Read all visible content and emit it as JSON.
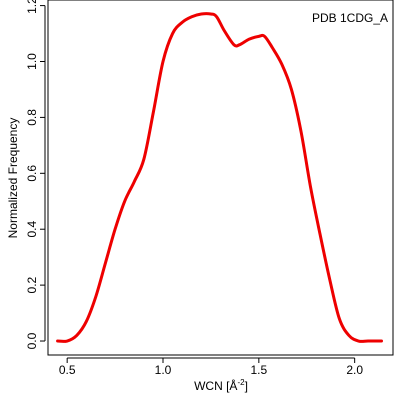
{
  "chart_data": {
    "type": "line",
    "title": "",
    "annotation": "PDB 1CDG_A",
    "xlabel_prefix": "WCN [",
    "xlabel_unit": "Å",
    "xlabel_exponent": "-2",
    "xlabel_suffix": "]",
    "ylabel": "Normalized Frequency",
    "xlim": [
      0.4,
      2.2
    ],
    "ylim": [
      -0.05,
      1.22
    ],
    "xticks": [
      0.5,
      1.0,
      1.5,
      2.0
    ],
    "xtick_labels": [
      "0.5",
      "1.0",
      "1.5",
      "2.0"
    ],
    "yticks": [
      0.0,
      0.2,
      0.4,
      0.6,
      0.8,
      1.0,
      1.2
    ],
    "ytick_labels": [
      "0.0",
      "0.2",
      "0.4",
      "0.6",
      "0.8",
      "1.0",
      "1.2"
    ],
    "grid": false,
    "line_color": "#ee0000",
    "series": [
      {
        "x": [
          0.45,
          0.5,
          0.55,
          0.6,
          0.65,
          0.7,
          0.75,
          0.8,
          0.85,
          0.9,
          0.95,
          1.0,
          1.05,
          1.1,
          1.15,
          1.2,
          1.25,
          1.28,
          1.32,
          1.37,
          1.4,
          1.45,
          1.5,
          1.53,
          1.57,
          1.62,
          1.67,
          1.72,
          1.77,
          1.82,
          1.87,
          1.92,
          1.97,
          2.02,
          2.07,
          2.14
        ],
        "y": [
          0.0,
          0.0,
          0.02,
          0.07,
          0.16,
          0.28,
          0.4,
          0.5,
          0.57,
          0.65,
          0.82,
          1.0,
          1.1,
          1.14,
          1.16,
          1.17,
          1.17,
          1.16,
          1.11,
          1.06,
          1.06,
          1.08,
          1.09,
          1.09,
          1.05,
          0.99,
          0.9,
          0.75,
          0.55,
          0.38,
          0.22,
          0.08,
          0.02,
          0.0,
          0.0,
          0.0
        ]
      }
    ]
  }
}
